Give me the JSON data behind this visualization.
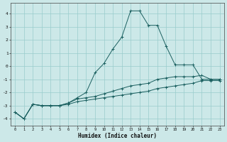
{
  "xlabel": "Humidex (Indice chaleur)",
  "bg_color": "#cce8e8",
  "line_color": "#1a5f5f",
  "grid_color": "#99cccc",
  "xlim_min": -0.5,
  "xlim_max": 23.5,
  "ylim_min": -4.5,
  "ylim_max": 4.8,
  "xticks": [
    0,
    1,
    2,
    3,
    4,
    5,
    6,
    7,
    8,
    9,
    10,
    11,
    12,
    13,
    14,
    15,
    16,
    17,
    18,
    19,
    20,
    21,
    22,
    23
  ],
  "yticks": [
    -4,
    -3,
    -2,
    -1,
    0,
    1,
    2,
    3,
    4
  ],
  "hours": [
    0,
    1,
    2,
    3,
    4,
    5,
    6,
    7,
    8,
    9,
    10,
    11,
    12,
    13,
    14,
    15,
    16,
    17,
    18,
    19,
    20,
    21,
    22,
    23
  ],
  "curve_top": [
    -3.5,
    -4.0,
    -2.9,
    -3.0,
    -3.0,
    -3.0,
    -2.8,
    -2.4,
    -2.0,
    -0.5,
    0.2,
    1.3,
    2.2,
    4.2,
    4.2,
    3.1,
    3.1,
    1.5,
    0.1,
    0.1,
    0.1,
    -1.0,
    -1.0,
    -1.0
  ],
  "curve_mid": [
    -3.5,
    -4.0,
    -2.9,
    -3.0,
    -3.0,
    -3.0,
    -2.8,
    -2.5,
    -2.4,
    -2.3,
    -2.1,
    -1.9,
    -1.7,
    -1.5,
    -1.4,
    -1.3,
    -1.0,
    -0.9,
    -0.8,
    -0.8,
    -0.8,
    -0.7,
    -1.0,
    -1.0
  ],
  "curve_bot": [
    -3.5,
    -4.0,
    -2.9,
    -3.0,
    -3.0,
    -3.0,
    -2.9,
    -2.7,
    -2.6,
    -2.5,
    -2.4,
    -2.3,
    -2.2,
    -2.1,
    -2.0,
    -1.9,
    -1.7,
    -1.6,
    -1.5,
    -1.4,
    -1.3,
    -1.1,
    -1.1,
    -1.1
  ]
}
